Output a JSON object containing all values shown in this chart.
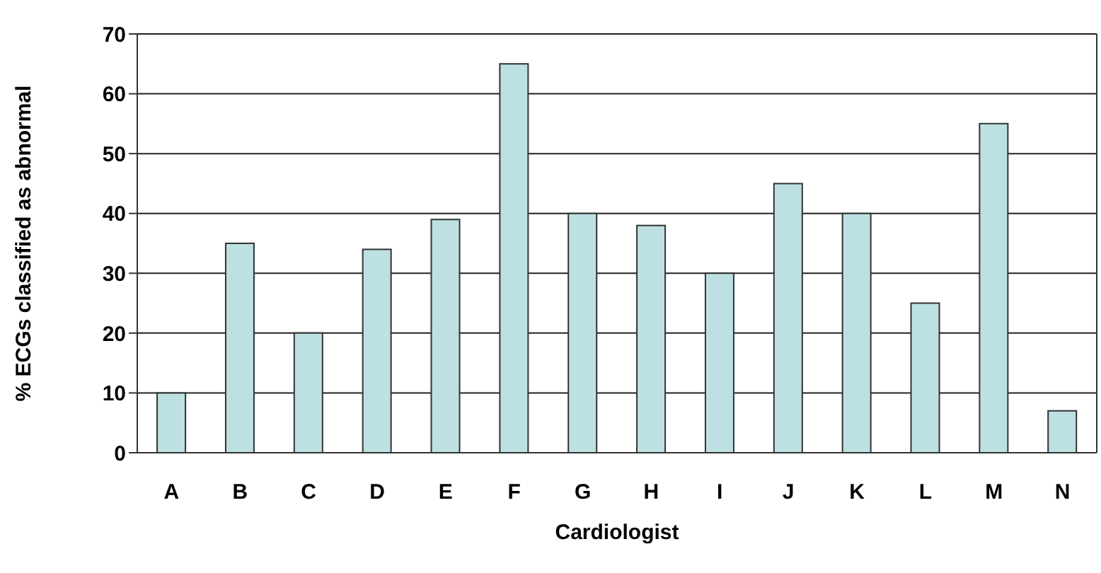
{
  "chart_data": {
    "type": "bar",
    "xlabel": "Cardiologist",
    "ylabel": "% ECGs classified as abnormal",
    "categories": [
      "A",
      "B",
      "C",
      "D",
      "E",
      "F",
      "G",
      "H",
      "I",
      "J",
      "K",
      "L",
      "M",
      "N"
    ],
    "values": [
      10,
      35,
      20,
      34,
      39,
      65,
      40,
      38,
      30,
      45,
      40,
      25,
      55,
      7
    ],
    "color": "#bde0e3",
    "ylim": [
      0,
      70
    ],
    "yticks": [
      0,
      10,
      20,
      30,
      40,
      50,
      60,
      70
    ],
    "grid": "y"
  }
}
